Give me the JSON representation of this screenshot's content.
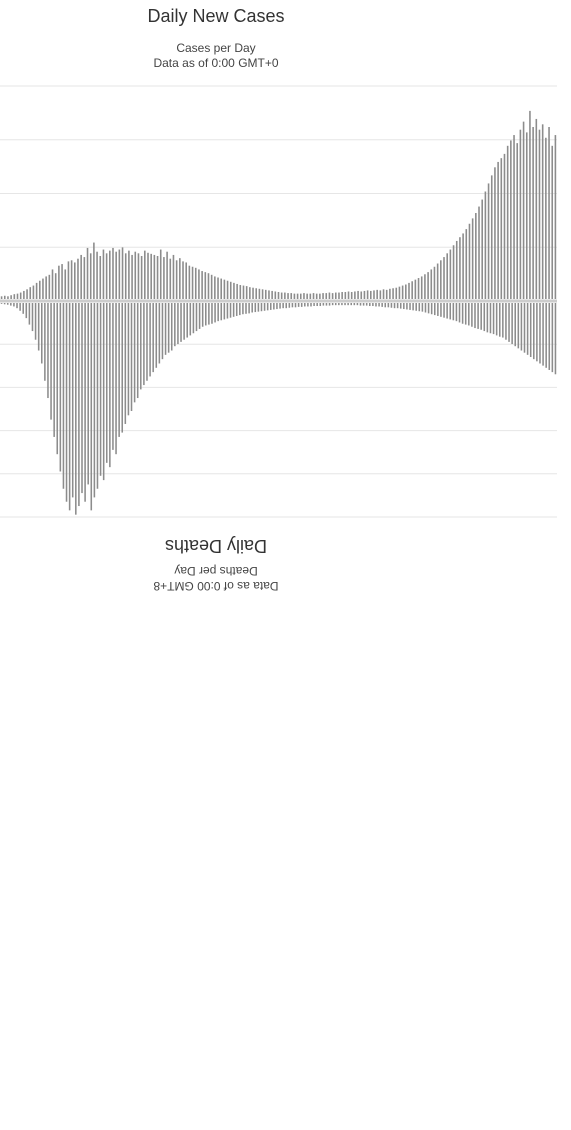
{
  "top_chart": {
    "title": "Daily New Cases",
    "subtitle_1": "Cases per Day",
    "subtitle_2": "Data as of 0:00 GMT+0"
  },
  "bottom_chart": {
    "title": "Daily Deaths",
    "subtitle_1": "Deaths per Day",
    "subtitle_2": "Data as of 0:00 GMT+8"
  },
  "chart_data": [
    {
      "type": "bar",
      "title": "Daily New Cases",
      "subtitle": "Cases per Day",
      "ylim": [
        0,
        4
      ],
      "grid": true,
      "values": [
        0.05,
        0.06,
        0.05,
        0.07,
        0.09,
        0.1,
        0.12,
        0.15,
        0.18,
        0.22,
        0.25,
        0.3,
        0.34,
        0.38,
        0.42,
        0.45,
        0.55,
        0.48,
        0.62,
        0.65,
        0.55,
        0.7,
        0.72,
        0.68,
        0.75,
        0.82,
        0.78,
        0.95,
        0.85,
        1.05,
        0.88,
        0.8,
        0.92,
        0.85,
        0.9,
        0.95,
        0.88,
        0.92,
        0.96,
        0.85,
        0.9,
        0.82,
        0.88,
        0.85,
        0.8,
        0.9,
        0.86,
        0.84,
        0.82,
        0.8,
        0.92,
        0.78,
        0.88,
        0.75,
        0.82,
        0.72,
        0.76,
        0.7,
        0.68,
        0.62,
        0.6,
        0.58,
        0.55,
        0.52,
        0.5,
        0.48,
        0.45,
        0.42,
        0.4,
        0.38,
        0.36,
        0.34,
        0.32,
        0.3,
        0.28,
        0.26,
        0.25,
        0.24,
        0.22,
        0.21,
        0.2,
        0.19,
        0.18,
        0.17,
        0.16,
        0.15,
        0.14,
        0.13,
        0.12,
        0.12,
        0.11,
        0.11,
        0.1,
        0.1,
        0.1,
        0.11,
        0.1,
        0.1,
        0.11,
        0.1,
        0.1,
        0.11,
        0.11,
        0.12,
        0.11,
        0.12,
        0.12,
        0.13,
        0.13,
        0.14,
        0.13,
        0.14,
        0.15,
        0.14,
        0.15,
        0.16,
        0.15,
        0.16,
        0.17,
        0.16,
        0.18,
        0.17,
        0.19,
        0.2,
        0.21,
        0.23,
        0.25,
        0.27,
        0.3,
        0.33,
        0.36,
        0.39,
        0.42,
        0.46,
        0.5,
        0.55,
        0.6,
        0.66,
        0.72,
        0.78,
        0.85,
        0.92,
        1.0,
        1.08,
        1.15,
        1.22,
        1.3,
        1.4,
        1.5,
        1.6,
        1.72,
        1.85,
        2.0,
        2.15,
        2.3,
        2.45,
        2.55,
        2.62,
        2.7,
        2.85,
        2.95,
        3.05,
        2.9,
        3.15,
        3.3,
        3.1,
        3.5,
        3.2,
        3.35,
        3.15,
        3.25,
        3.0,
        3.2,
        2.85,
        3.05
      ]
    },
    {
      "type": "bar",
      "title": "Daily Deaths",
      "subtitle": "Deaths per Day",
      "ylim": [
        0,
        5
      ],
      "grid": true,
      "values": [
        0.02,
        0.03,
        0.04,
        0.06,
        0.08,
        0.12,
        0.18,
        0.25,
        0.35,
        0.5,
        0.65,
        0.85,
        1.1,
        1.4,
        1.8,
        2.2,
        2.7,
        3.1,
        3.5,
        3.9,
        4.3,
        4.6,
        4.8,
        4.5,
        4.9,
        4.7,
        4.4,
        4.6,
        4.2,
        4.8,
        4.5,
        4.3,
        4.0,
        4.1,
        3.7,
        3.8,
        3.4,
        3.5,
        3.1,
        3.0,
        2.8,
        2.6,
        2.5,
        2.3,
        2.2,
        2.0,
        1.9,
        1.8,
        1.7,
        1.6,
        1.5,
        1.4,
        1.3,
        1.2,
        1.15,
        1.1,
        1.0,
        0.95,
        0.9,
        0.85,
        0.8,
        0.75,
        0.7,
        0.65,
        0.6,
        0.55,
        0.52,
        0.5,
        0.48,
        0.45,
        0.42,
        0.4,
        0.38,
        0.36,
        0.34,
        0.32,
        0.3,
        0.28,
        0.26,
        0.25,
        0.24,
        0.22,
        0.21,
        0.2,
        0.19,
        0.18,
        0.17,
        0.16,
        0.15,
        0.14,
        0.13,
        0.12,
        0.12,
        0.11,
        0.1,
        0.1,
        0.09,
        0.09,
        0.08,
        0.08,
        0.08,
        0.07,
        0.07,
        0.07,
        0.06,
        0.06,
        0.06,
        0.05,
        0.05,
        0.05,
        0.05,
        0.05,
        0.05,
        0.05,
        0.05,
        0.05,
        0.06,
        0.06,
        0.06,
        0.07,
        0.07,
        0.08,
        0.08,
        0.09,
        0.1,
        0.1,
        0.11,
        0.12,
        0.12,
        0.13,
        0.14,
        0.15,
        0.16,
        0.17,
        0.18,
        0.19,
        0.2,
        0.22,
        0.24,
        0.26,
        0.28,
        0.3,
        0.32,
        0.34,
        0.36,
        0.38,
        0.4,
        0.42,
        0.45,
        0.48,
        0.5,
        0.52,
        0.55,
        0.58,
        0.6,
        0.62,
        0.65,
        0.68,
        0.7,
        0.72,
        0.75,
        0.78,
        0.8,
        0.85,
        0.9,
        0.95,
        1.0,
        1.05,
        1.1,
        1.15,
        1.2,
        1.25,
        1.3,
        1.35,
        1.4,
        1.45,
        1.5,
        1.55,
        1.6,
        1.65
      ]
    }
  ]
}
